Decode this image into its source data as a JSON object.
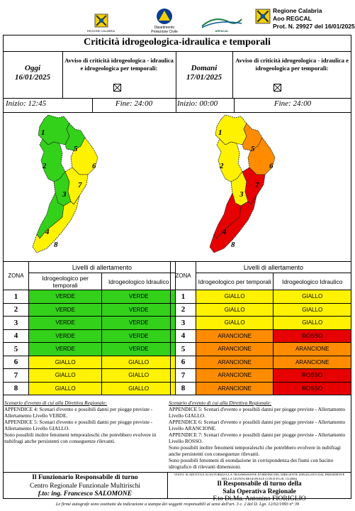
{
  "header": {
    "logo_labels": [
      "REGIONE CALABRIA",
      "Dipartimento\nProtezione Civile",
      "ARPACAL"
    ],
    "regione": "Regione Calabria",
    "aoo": "Aoo REGCAL",
    "prot": "Prot. N. 29927 del 16/01/2025"
  },
  "title": "Criticità idrogeologica-idraulica e temporali",
  "left": {
    "day_label": "Oggi",
    "date": "16/01/2025",
    "avviso": "Avviso di criticità idrogeologica - idraulica e idrogeologica per temporali:",
    "inizio": "Inizio: 12:45",
    "fine": "Fine: 24:00"
  },
  "right": {
    "day_label": "Domani",
    "date": "17/01/2025",
    "avviso": "Avviso di criticità idrogeologica - idraulica e idrogeologica per temporali:",
    "inizio": "Inizio: 00:00",
    "fine": "Fine: 24:00"
  },
  "map_labels": [
    "1",
    "2",
    "3",
    "4",
    "5",
    "6",
    "7",
    "8"
  ],
  "table": {
    "zona_header": "ZONA",
    "livelli_header": "Livelli di allertamento",
    "col1": "Idrogeologico per temporali",
    "col2": "Idrogeologico Idraulico",
    "zones": [
      "1",
      "2",
      "3",
      "4",
      "5",
      "6",
      "7",
      "8"
    ],
    "today": [
      [
        "VERDE",
        "VERDE"
      ],
      [
        "VERDE",
        "VERDE"
      ],
      [
        "VERDE",
        "VERDE"
      ],
      [
        "VERDE",
        "VERDE"
      ],
      [
        "VERDE",
        "VERDE"
      ],
      [
        "GIALLO",
        "GIALLO"
      ],
      [
        "GIALLO",
        "GIALLO"
      ],
      [
        "GIALLO",
        "GIALLO"
      ]
    ],
    "tomorrow": [
      [
        "GIALLO",
        "GIALLO"
      ],
      [
        "GIALLO",
        "GIALLO"
      ],
      [
        "GIALLO",
        "GIALLO"
      ],
      [
        "ARANCIONE",
        "ROSSO"
      ],
      [
        "ARANCIONE",
        "ARANCIONE"
      ],
      [
        "ARANCIONE",
        "ARANCIONE"
      ],
      [
        "ARANCIONE",
        "ROSSO"
      ],
      [
        "ARANCIONE",
        "ROSSO"
      ]
    ]
  },
  "level_colors": {
    "VERDE": "#33d11a",
    "GIALLO": "#fff200",
    "ARANCIONE": "#ff8c00",
    "ROSSO": "#e60000"
  },
  "zone_colors_today": [
    "#33d11a",
    "#33d11a",
    "#33d11a",
    "#33d11a",
    "#33d11a",
    "#fff200",
    "#fff200",
    "#fff200"
  ],
  "zone_colors_tomorrow": [
    "#fff200",
    "#fff200",
    "#fff200",
    "#e60000",
    "#ff8c00",
    "#ff8c00",
    "#e60000",
    "#e60000"
  ],
  "scenario_left": {
    "heading": "Scenario d'evento di cui alla Direttiva Regionale:",
    "lines": [
      "APPENDICE 4: Scenari d'evento e possibili danni per piogge previste - Allertamento Livello VERDE.",
      "APPENDICE 5: Scenari d'evento e possibili danni per piogge previste - Allertamento Livello GIALLO.",
      "Sono possibili inoltre fenomeni temporaleschi che potrebbero evolvere in nubifragi anche persistenti con conseguenze rilevanti."
    ]
  },
  "scenario_right": {
    "heading": "Scenario d'evento di cui alla Direttiva Regionale:",
    "lines": [
      "APPENDICE 5: Scenari d'evento e possibili danni per piogge previste - Allertamento Livello GIALLO.",
      "APPENDICE 6: Scenari d'evento e possibili danni per piogge previste - Allertamento Livello ARANCIONE.",
      "APPENDICE 7: Scenari d'evento e possibili danni per piogge previste - Allertamento Livello ROSSO.",
      "Sono possibili inoltre fenomeni temporaleschi che potrebbero evolvere in nubifragi anche persistenti con conseguenze rilevanti.",
      "Sono possibili fenomeni di esondazione in corrispondenza dei fiumi con bacino idrografico di rilevanti dimensioni."
    ]
  },
  "footer_left": {
    "line1": "Il Funzionario Responsabile di turno",
    "line2": "Centro Regionale Funzionale Multirischi",
    "line3": "f.to: ing. Francesco SALOMONE"
  },
  "footer_right": {
    "visto": "VISTO: SI ADOTTA E SI AUTORIZZA LA TRASMISSIONE D'ORDINE DEL DIRIGENTE (DELEGATO DAL PRESIDENTE DELLA GIUNTA REGIONALE CON D.P.G.R. 13/2006)",
    "line1": "Il Responsabile di turno della",
    "line2": "Sala Operativa Regionale",
    "line3": "F.to Di.Ma. Antonino FIORIGLIO"
  },
  "bottom_note": "Le firme autografe sono sostituite da indicazione a stampa dei soggetti responsabili ai sensi dell'art. 3 c. 2 del D. Lgs. 12/02/1993 n° 39"
}
